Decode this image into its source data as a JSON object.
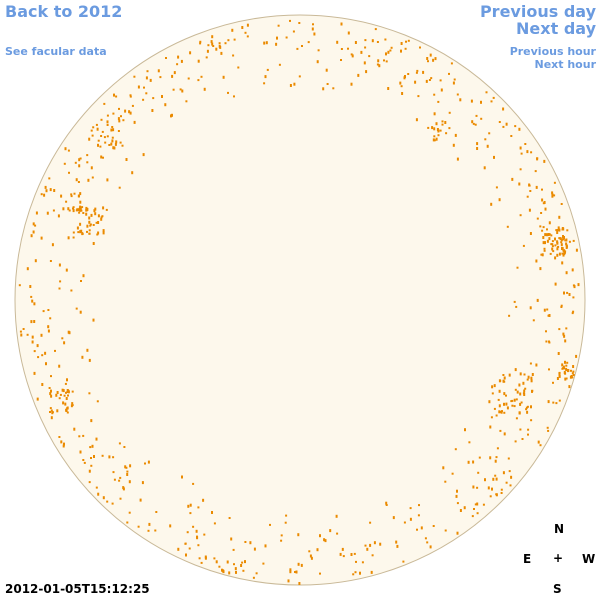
{
  "nav": {
    "back_year": "Back to 2012",
    "facular_data": "See facular data",
    "previous_day": "Previous day",
    "next_day": "Next day",
    "previous_hour": "Previous hour",
    "next_hour": "Next hour"
  },
  "timestamp": "2012-01-05T15:12:25",
  "compass": {
    "north": "N",
    "east": "E",
    "center": "+",
    "west": "W",
    "south": "S"
  }
}
